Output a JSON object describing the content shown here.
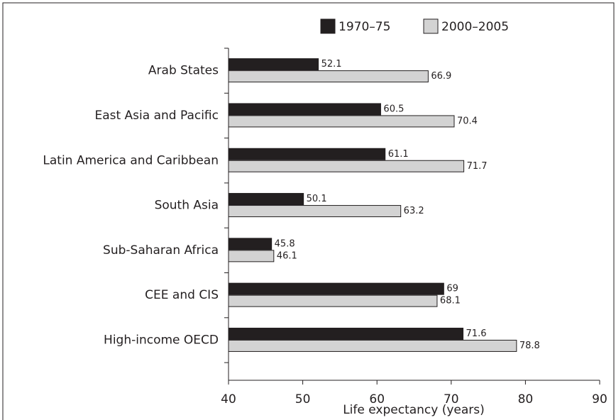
{
  "chart_data": {
    "type": "bar",
    "orientation": "horizontal",
    "xlabel": "Life expectancy (years)",
    "categories": [
      "Arab States",
      "East Asia and Pacific",
      "Latin America and Caribbean",
      "South Asia",
      "Sub-Saharan Africa",
      "CEE and CIS",
      "High-income OECD"
    ],
    "series": [
      {
        "name": "1970–75",
        "color": "#231f20",
        "values": [
          52.1,
          60.5,
          61.1,
          50.1,
          45.8,
          69,
          71.6
        ]
      },
      {
        "name": "2000–2005",
        "color": "#d3d3d3",
        "values": [
          66.9,
          70.4,
          71.7,
          63.2,
          46.1,
          68.1,
          78.8
        ]
      }
    ],
    "xlim": [
      40,
      90
    ],
    "xticks": [
      40,
      50,
      60,
      70,
      80,
      90
    ],
    "legend": "top-right"
  }
}
